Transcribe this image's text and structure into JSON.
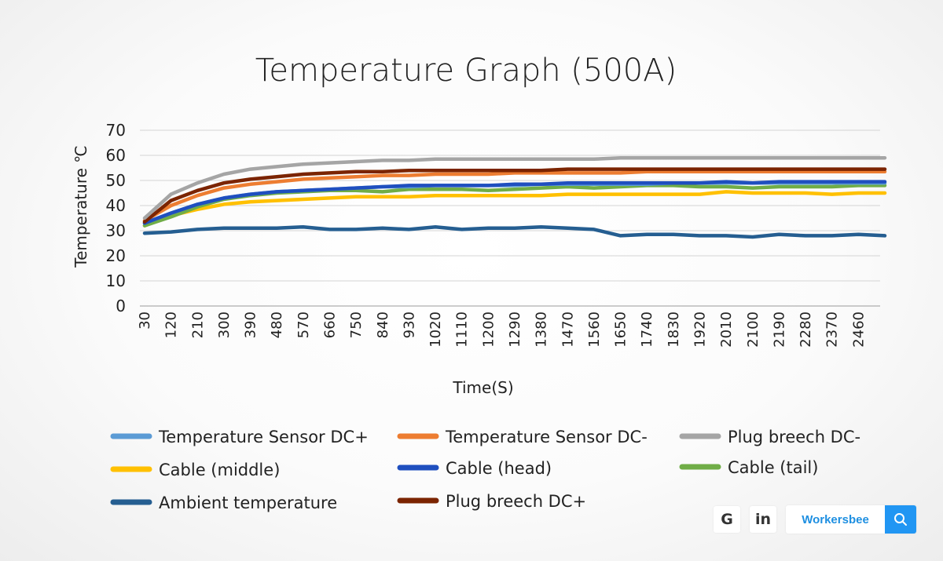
{
  "chart_data": {
    "type": "line",
    "title": "Temperature Graph (500A)",
    "xlabel": "Time(S)",
    "ylabel": "Temperature ℃",
    "ylim": [
      0,
      70
    ],
    "yticks": [
      0,
      10,
      20,
      30,
      40,
      50,
      60,
      70
    ],
    "xlim": [
      30,
      2550
    ],
    "xticks": [
      30,
      120,
      210,
      300,
      390,
      480,
      570,
      660,
      750,
      840,
      930,
      1020,
      1110,
      1200,
      1290,
      1380,
      1470,
      1560,
      1650,
      1740,
      1830,
      1920,
      2010,
      2100,
      2190,
      2280,
      2370,
      2460
    ],
    "grid": true,
    "legend_position": "bottom",
    "series": [
      {
        "name": "Temperature Sensor DC+",
        "color": "#5b9bd5",
        "x": [
          30,
          120,
          210,
          300,
          390,
          480,
          570,
          660,
          750,
          840,
          930,
          1020,
          1110,
          1200,
          1290,
          1380,
          1470,
          1560,
          1650,
          1740,
          1830,
          1920,
          2010,
          2100,
          2190,
          2280,
          2370,
          2460,
          2550
        ],
        "values": [
          33,
          37,
          40.5,
          43,
          44.5,
          45.5,
          46,
          46.5,
          47,
          47.5,
          47.5,
          48,
          48,
          48,
          48,
          48.5,
          48.5,
          48.5,
          48.5,
          48.5,
          49,
          49,
          49,
          49,
          49,
          49,
          49,
          49,
          49
        ]
      },
      {
        "name": "Temperature Sensor DC-",
        "color": "#ed7d31",
        "x": [
          30,
          120,
          210,
          300,
          390,
          480,
          570,
          660,
          750,
          840,
          930,
          1020,
          1110,
          1200,
          1290,
          1380,
          1470,
          1560,
          1650,
          1740,
          1830,
          1920,
          2010,
          2100,
          2190,
          2280,
          2370,
          2460,
          2550
        ],
        "values": [
          34,
          40,
          44,
          47,
          48.5,
          49.5,
          50.5,
          51,
          51.5,
          52,
          52,
          52.5,
          52.5,
          52.5,
          53,
          53,
          53,
          53,
          53,
          53.5,
          53.5,
          53.5,
          53.5,
          53.5,
          53.5,
          53.5,
          53.5,
          53.5,
          53.5
        ]
      },
      {
        "name": "Plug breech DC-",
        "color": "#a5a5a5",
        "x": [
          30,
          120,
          210,
          300,
          390,
          480,
          570,
          660,
          750,
          840,
          930,
          1020,
          1110,
          1200,
          1290,
          1380,
          1470,
          1560,
          1650,
          1740,
          1830,
          1920,
          2010,
          2100,
          2190,
          2280,
          2370,
          2460,
          2550
        ],
        "values": [
          35,
          44.5,
          49,
          52.5,
          54.5,
          55.5,
          56.5,
          57,
          57.5,
          58,
          58,
          58.5,
          58.5,
          58.5,
          58.5,
          58.5,
          58.5,
          58.5,
          59,
          59,
          59,
          59,
          59,
          59,
          59,
          59,
          59,
          59,
          59
        ]
      },
      {
        "name": "Cable (middle)",
        "color": "#ffc000",
        "x": [
          30,
          120,
          210,
          300,
          390,
          480,
          570,
          660,
          750,
          840,
          930,
          1020,
          1110,
          1200,
          1290,
          1380,
          1470,
          1560,
          1650,
          1740,
          1830,
          1920,
          2010,
          2100,
          2190,
          2280,
          2370,
          2460,
          2550
        ],
        "values": [
          32,
          36,
          38.5,
          40.5,
          41.5,
          42,
          42.5,
          43,
          43.5,
          43.5,
          43.5,
          44,
          44,
          44,
          44,
          44,
          44.5,
          44.5,
          44.5,
          44.5,
          44.5,
          44.5,
          45.5,
          45,
          45,
          45,
          44.5,
          45,
          45
        ]
      },
      {
        "name": "Cable (head)",
        "color": "#1f4fbf",
        "x": [
          30,
          120,
          210,
          300,
          390,
          480,
          570,
          660,
          750,
          840,
          930,
          1020,
          1110,
          1200,
          1290,
          1380,
          1470,
          1560,
          1650,
          1740,
          1830,
          1920,
          2010,
          2100,
          2190,
          2280,
          2370,
          2460,
          2550
        ],
        "values": [
          33,
          37,
          40.5,
          43,
          44.5,
          45.5,
          46,
          46.5,
          47,
          47.5,
          48,
          48,
          48,
          48,
          48.5,
          48.5,
          49,
          49,
          49,
          49,
          49,
          49,
          49.5,
          49,
          49.5,
          49.5,
          49.5,
          49.5,
          49.5
        ]
      },
      {
        "name": "Cable (tail)",
        "color": "#70ad47",
        "x": [
          30,
          120,
          210,
          300,
          390,
          480,
          570,
          660,
          750,
          840,
          930,
          1020,
          1110,
          1200,
          1290,
          1380,
          1470,
          1560,
          1650,
          1740,
          1830,
          1920,
          2010,
          2100,
          2190,
          2280,
          2370,
          2460,
          2550
        ],
        "values": [
          32,
          35.5,
          39.5,
          42.5,
          44,
          45,
          45.5,
          46,
          46,
          45.5,
          46.5,
          46.5,
          46.5,
          46,
          46.5,
          47,
          47.5,
          47,
          47.5,
          48,
          48,
          47.5,
          47.5,
          47,
          47.5,
          47.5,
          47.5,
          48,
          48
        ]
      },
      {
        "name": "Ambient temperature",
        "color": "#255e91",
        "x": [
          30,
          120,
          210,
          300,
          390,
          480,
          570,
          660,
          750,
          840,
          930,
          1020,
          1110,
          1200,
          1290,
          1380,
          1470,
          1560,
          1650,
          1740,
          1830,
          1920,
          2010,
          2100,
          2190,
          2280,
          2370,
          2460,
          2550
        ],
        "values": [
          29,
          29.5,
          30.5,
          31,
          31,
          31,
          31.5,
          30.5,
          30.5,
          31,
          30.5,
          31.5,
          30.5,
          31,
          31,
          31.5,
          31,
          30.5,
          28,
          28.5,
          28.5,
          28,
          28,
          27.5,
          28.5,
          28,
          28,
          28.5,
          28
        ]
      },
      {
        "name": "Plug breech DC+",
        "color": "#7b2400",
        "x": [
          30,
          120,
          210,
          300,
          390,
          480,
          570,
          660,
          750,
          840,
          930,
          1020,
          1110,
          1200,
          1290,
          1380,
          1470,
          1560,
          1650,
          1740,
          1830,
          1920,
          2010,
          2100,
          2190,
          2280,
          2370,
          2460,
          2550
        ],
        "values": [
          33.5,
          42,
          46,
          49,
          50.5,
          51.5,
          52.5,
          53,
          53.5,
          53.5,
          54,
          54,
          54,
          54,
          54,
          54,
          54.5,
          54.5,
          54.5,
          54.5,
          54.5,
          54.5,
          54.5,
          54.5,
          54.5,
          54.5,
          54.5,
          54.5,
          54.5
        ]
      }
    ],
    "legend": [
      "Temperature Sensor DC+",
      "Temperature Sensor DC-",
      "Plug breech DC-",
      "Cable (middle)",
      "Cable (head)",
      "Cable (tail)",
      "Ambient temperature",
      "Plug breech DC+"
    ]
  },
  "brand": {
    "google_icon": "google-icon",
    "linkedin_icon": "linkedin-icon",
    "google_label": "G",
    "linkedin_label": "in",
    "name": "Workersbee",
    "search_icon": "search-icon"
  }
}
